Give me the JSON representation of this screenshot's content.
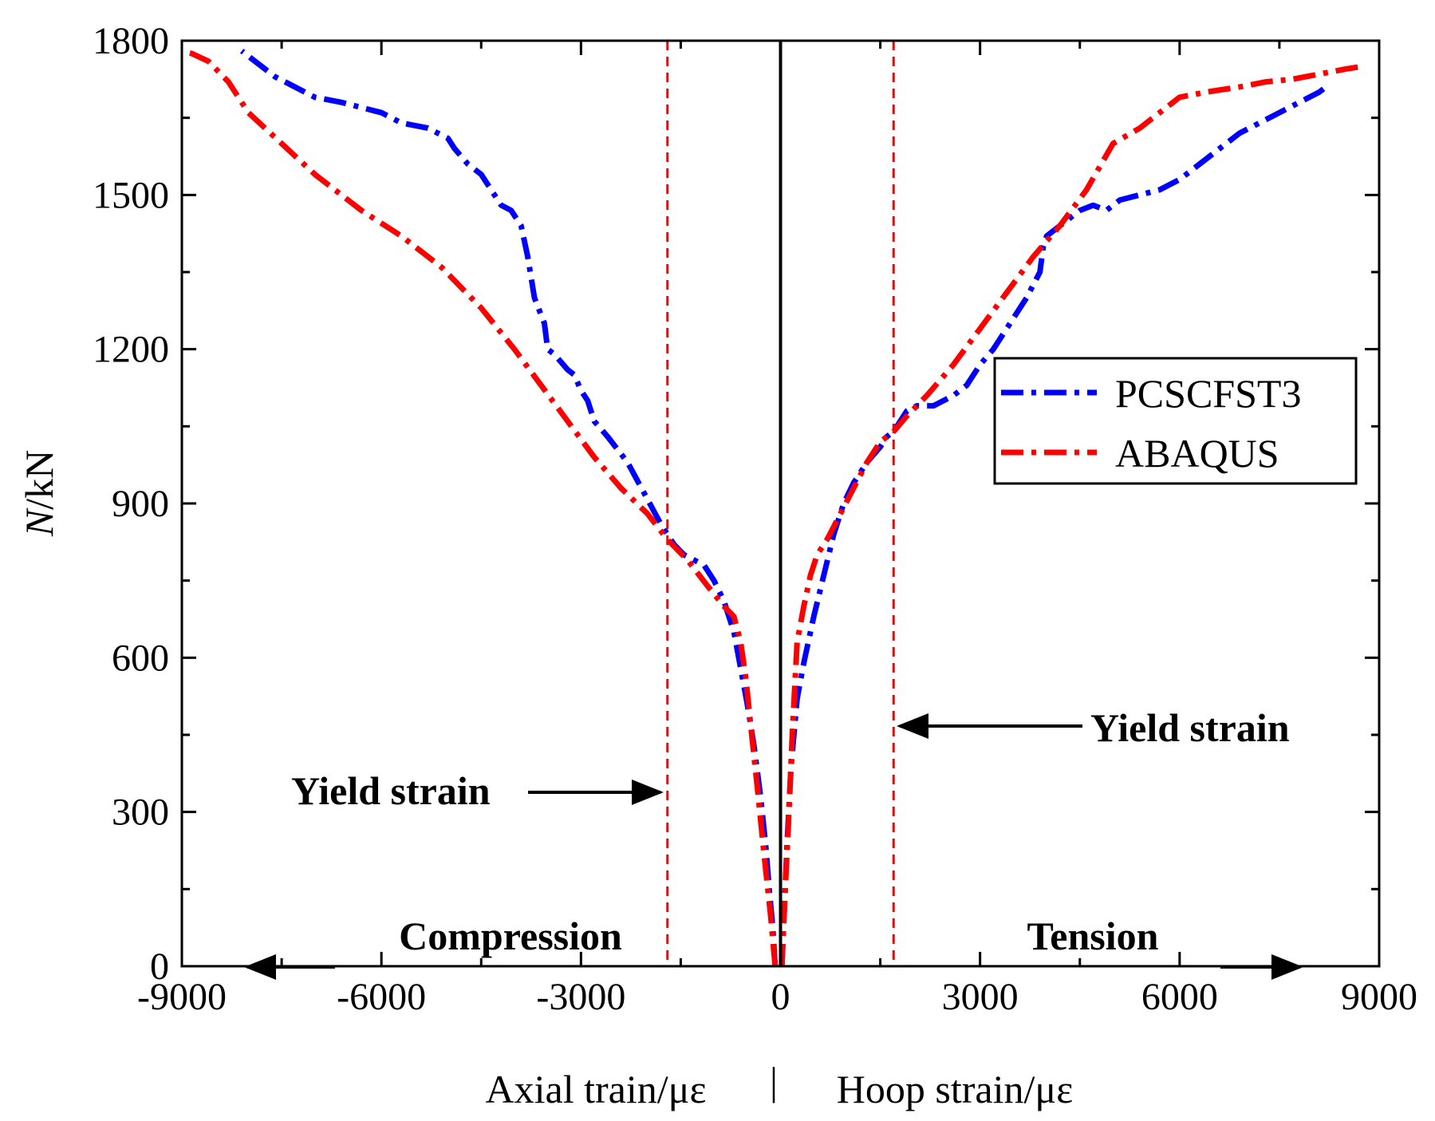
{
  "chart_data": {
    "type": "line",
    "title": "",
    "xlabel_left": "Axial train/με",
    "xlabel_sep": "|",
    "xlabel_right": "Hoop strain/με",
    "ylabel_italic": "N",
    "ylabel_rest": "/kN",
    "xlim": [
      -9000,
      9000
    ],
    "ylim": [
      0,
      1800
    ],
    "xticks": [
      -9000,
      -6000,
      -3000,
      0,
      3000,
      6000,
      9000
    ],
    "xtick_labels": [
      "-9000",
      "-6000",
      "-3000",
      "0",
      "3000",
      "6000",
      "9000"
    ],
    "yticks": [
      0,
      300,
      600,
      900,
      1200,
      1500,
      1800
    ],
    "ytick_labels": [
      "0",
      "300",
      "600",
      "900",
      "1200",
      "1500",
      "1800"
    ],
    "grid": false,
    "legend_position": "right",
    "series": [
      {
        "name": "PCSCFST3",
        "color": "#0000ff",
        "style": "dash-dot",
        "branches": [
          {
            "side": "axial",
            "x": [
              -80,
              -120,
              -170,
              -220,
              -300,
              -400,
              -500,
              -600,
              -700,
              -850,
              -1000,
              -1150,
              -1300,
              -1450,
              -1600,
              -1800,
              -2050,
              -2300,
              -2600,
              -2800,
              -2900,
              -3000,
              -3100,
              -3200,
              -3400,
              -3500,
              -3550,
              -3700,
              -3800,
              -3900,
              -4050,
              -4200,
              -4300,
              -4500,
              -4700,
              -4900,
              -5000,
              -5300,
              -5700,
              -6000,
              -6600,
              -7000,
              -7300,
              -7600,
              -7900,
              -8100
            ],
            "y": [
              0,
              80,
              150,
              230,
              330,
              430,
              510,
              580,
              650,
              710,
              750,
              780,
              790,
              800,
              820,
              860,
              920,
              980,
              1030,
              1060,
              1100,
              1120,
              1150,
              1160,
              1190,
              1200,
              1250,
              1300,
              1380,
              1440,
              1470,
              1480,
              1500,
              1540,
              1560,
              1590,
              1610,
              1630,
              1640,
              1660,
              1680,
              1690,
              1710,
              1730,
              1760,
              1780
            ]
          },
          {
            "side": "hoop",
            "x": [
              20,
              60,
              100,
              160,
              250,
              350,
              500,
              650,
              800,
              950,
              1100,
              1300,
              1500,
              1600,
              1700,
              1900,
              2050,
              2300,
              2600,
              2800,
              3000,
              3200,
              3400,
              3700,
              3900,
              3950,
              4000,
              4200,
              4500,
              4700,
              4900,
              5100,
              5400,
              5700,
              6000,
              6300,
              6600,
              6900,
              7200,
              7500,
              7800,
              8100,
              8200
            ],
            "y": [
              0,
              120,
              240,
              390,
              520,
              590,
              680,
              760,
              840,
              900,
              940,
              980,
              1010,
              1030,
              1040,
              1080,
              1090,
              1090,
              1110,
              1130,
              1170,
              1200,
              1240,
              1300,
              1350,
              1400,
              1420,
              1440,
              1470,
              1480,
              1470,
              1490,
              1500,
              1510,
              1530,
              1560,
              1590,
              1620,
              1640,
              1660,
              1680,
              1700,
              1710
            ]
          }
        ]
      },
      {
        "name": "ABAQUS",
        "color": "#ff0000",
        "style": "dash-dot",
        "branches": [
          {
            "side": "axial",
            "x": [
              -80,
              -150,
              -250,
              -350,
              -450,
              -520,
              -600,
              -700,
              -850,
              -1100,
              -1400,
              -1700,
              -2000,
              -2400,
              -2800,
              -3200,
              -3600,
              -4000,
              -4500,
              -5100,
              -5700,
              -6300,
              -7000,
              -7500,
              -8000,
              -8300,
              -8600,
              -8850,
              -9000
            ],
            "y": [
              0,
              100,
              220,
              350,
              470,
              560,
              630,
              680,
              700,
              740,
              790,
              830,
              880,
              930,
              990,
              1060,
              1130,
              1200,
              1280,
              1360,
              1420,
              1470,
              1540,
              1600,
              1660,
              1720,
              1760,
              1775,
              1780
            ]
          },
          {
            "side": "hoop",
            "x": [
              20,
              60,
              120,
              180,
              250,
              350,
              450,
              550,
              700,
              900,
              1100,
              1300,
              1500,
              1700,
              1900,
              2200,
              2600,
              3000,
              3400,
              3800,
              4200,
              4600,
              5000,
              5400,
              5700,
              6000,
              6400,
              6900,
              7300,
              7700,
              8100,
              8500,
              8750
            ],
            "y": [
              0,
              120,
              280,
              460,
              630,
              700,
              760,
              800,
              830,
              880,
              930,
              980,
              1020,
              1040,
              1070,
              1110,
              1170,
              1240,
              1310,
              1380,
              1440,
              1510,
              1600,
              1630,
              1660,
              1690,
              1700,
              1710,
              1720,
              1725,
              1735,
              1745,
              1750
            ]
          }
        ]
      }
    ],
    "reference_lines": [
      {
        "axis": "x",
        "value": -1700,
        "color": "#ff0000",
        "style": "dashed"
      },
      {
        "axis": "x",
        "value": 1700,
        "color": "#ff0000",
        "style": "dashed"
      },
      {
        "axis": "x",
        "value": 0,
        "color": "#000000",
        "style": "solid"
      }
    ],
    "annotations": [
      {
        "text": "Yield strain",
        "arrow_to_x": -1700,
        "at_y": 335,
        "side": "left"
      },
      {
        "text": "Yield strain",
        "arrow_to_x": 1700,
        "at_y": 465,
        "side": "right"
      },
      {
        "text": "Compression",
        "arrow": "left"
      },
      {
        "text": "Tension",
        "arrow": "right"
      }
    ]
  }
}
